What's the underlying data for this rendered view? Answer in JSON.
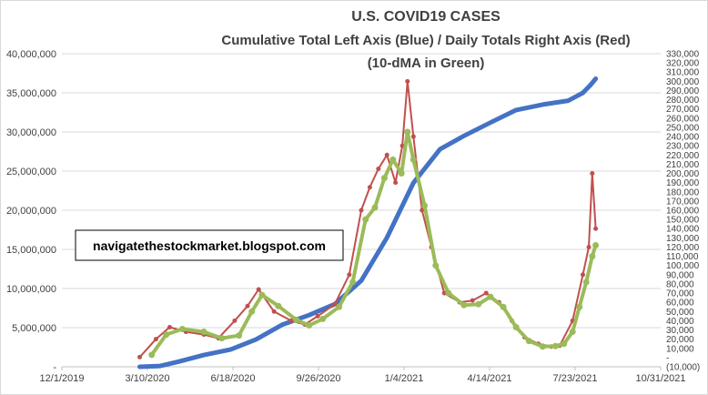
{
  "chart_data": {
    "type": "line",
    "title": "U.S. COVID19 CASES",
    "subtitle": "Cumulative Total Left Axis (Blue) / Daily Totals Right Axis (Red)",
    "subtitle2": "(10-dMA in Green)",
    "annotation": "navigatethestockmarket.blogspot.com",
    "xlabel": "",
    "ylabel": "",
    "y2label": "",
    "grid": true,
    "x_ticks": [
      "12/1/2019",
      "3/10/2020",
      "6/18/2020",
      "9/26/2020",
      "1/4/2021",
      "4/14/2021",
      "7/23/2021",
      "10/31/2021"
    ],
    "xlim": [
      "12/1/2019",
      "10/31/2021"
    ],
    "ylim": [
      0,
      40000000
    ],
    "y_ticks": [
      "-",
      "5,000,000",
      "10,000,000",
      "15,000,000",
      "20,000,000",
      "25,000,000",
      "30,000,000",
      "35,000,000",
      "40,000,000"
    ],
    "y2lim": [
      -10000,
      330000
    ],
    "y2_ticks": [
      "(10,000)",
      "-",
      "10,000",
      "20,000",
      "30,000",
      "40,000",
      "50,000",
      "60,000",
      "70,000",
      "80,000",
      "90,000",
      "100,000",
      "110,000",
      "120,000",
      "130,000",
      "140,000",
      "150,000",
      "160,000",
      "170,000",
      "180,000",
      "190,000",
      "200,000",
      "210,000",
      "220,000",
      "230,000",
      "240,000",
      "250,000",
      "260,000",
      "270,000",
      "280,000",
      "290,000",
      "300,000",
      "310,000",
      "320,000",
      "330,000"
    ],
    "series": [
      {
        "name": "Cumulative Total",
        "axis": "left",
        "color": "#4472C4",
        "x": [
          "3/1/2020",
          "3/25/2020",
          "4/15/2020",
          "5/15/2020",
          "6/15/2020",
          "7/15/2020",
          "8/15/2020",
          "9/15/2020",
          "10/15/2020",
          "11/15/2020",
          "12/15/2020",
          "1/15/2021",
          "2/15/2021",
          "3/15/2021",
          "4/15/2021",
          "5/15/2021",
          "6/15/2021",
          "7/15/2021",
          "8/1/2021",
          "8/10/2021",
          "8/16/2021"
        ],
        "values": [
          0,
          100000,
          650000,
          1500000,
          2200000,
          3500000,
          5400000,
          6600000,
          8000000,
          11000000,
          16500000,
          23500000,
          27800000,
          29500000,
          31200000,
          32800000,
          33500000,
          34000000,
          35000000,
          36000000,
          36800000
        ]
      },
      {
        "name": "Daily Totals",
        "axis": "right",
        "color": "#C0504D",
        "x": [
          "3/1/2020",
          "3/20/2020",
          "4/5/2020",
          "4/24/2020",
          "5/15/2020",
          "6/1/2020",
          "6/20/2020",
          "7/5/2020",
          "7/18/2020",
          "8/5/2020",
          "8/25/2020",
          "9/10/2020",
          "9/25/2020",
          "10/15/2020",
          "11/1/2020",
          "11/15/2020",
          "11/25/2020",
          "12/5/2020",
          "12/15/2020",
          "12/25/2020",
          "1/2/2021",
          "1/8/2021",
          "1/15/2021",
          "1/25/2021",
          "2/5/2021",
          "2/20/2021",
          "3/10/2021",
          "3/25/2021",
          "4/10/2021",
          "4/25/2021",
          "5/10/2021",
          "5/25/2021",
          "6/10/2021",
          "6/25/2021",
          "7/5/2021",
          "7/20/2021",
          "8/1/2021",
          "8/8/2021",
          "8/12/2021",
          "8/16/2021"
        ],
        "values": [
          500,
          20000,
          33000,
          28000,
          25000,
          21000,
          40000,
          56000,
          74000,
          50000,
          40000,
          36000,
          45000,
          58000,
          90000,
          160000,
          185000,
          205000,
          220000,
          190000,
          230000,
          300000,
          240000,
          160000,
          120000,
          70000,
          60000,
          62000,
          70000,
          60000,
          40000,
          22000,
          15000,
          12000,
          13000,
          40000,
          90000,
          120000,
          200000,
          140000
        ]
      },
      {
        "name": "10-dMA",
        "axis": "right",
        "color": "#9BBB59",
        "x": [
          "3/15/2020",
          "4/1/2020",
          "4/20/2020",
          "5/15/2020",
          "6/5/2020",
          "6/25/2020",
          "7/10/2020",
          "7/22/2020",
          "8/10/2020",
          "8/31/2020",
          "9/15/2020",
          "10/1/2020",
          "10/20/2020",
          "11/5/2020",
          "11/20/2020",
          "12/1/2020",
          "12/12/2020",
          "12/22/2020",
          "1/1/2021",
          "1/8/2021",
          "1/15/2021",
          "1/28/2021",
          "2/10/2021",
          "2/25/2021",
          "3/15/2021",
          "4/1/2021",
          "4/15/2021",
          "4/30/2021",
          "5/15/2021",
          "5/30/2021",
          "6/15/2021",
          "6/30/2021",
          "7/10/2021",
          "7/20/2021",
          "7/28/2021",
          "8/5/2021",
          "8/12/2021",
          "8/16/2021"
        ],
        "values": [
          3000,
          25000,
          31000,
          28000,
          21000,
          24000,
          50000,
          68000,
          56000,
          41000,
          35000,
          42000,
          55000,
          82000,
          150000,
          163000,
          195000,
          215000,
          200000,
          245000,
          215000,
          165000,
          100000,
          70000,
          57000,
          58000,
          66000,
          55000,
          33000,
          18000,
          12000,
          12500,
          15000,
          28000,
          55000,
          82000,
          110000,
          122000
        ]
      }
    ]
  }
}
